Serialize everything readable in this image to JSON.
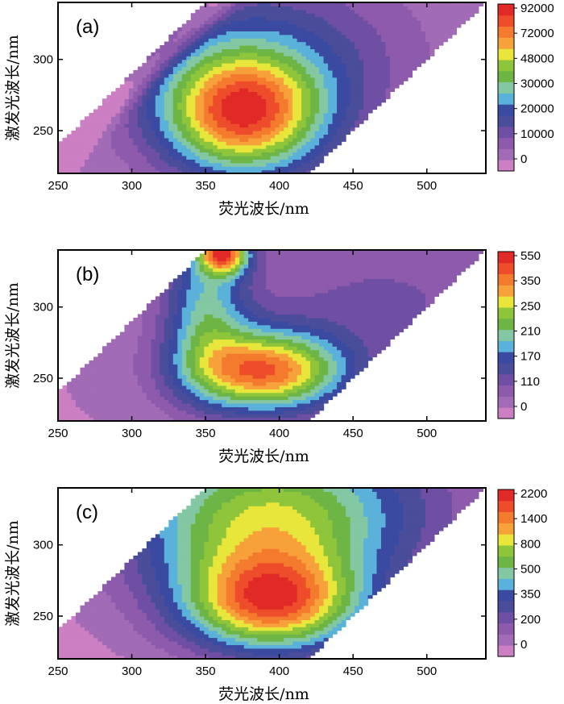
{
  "chart_data": [
    {
      "type": "heatmap",
      "panel_label": "(a)",
      "xlabel": "荧光波长/nm",
      "ylabel": "激发光波长/nm",
      "xlim": [
        250,
        540
      ],
      "ylim": [
        220,
        340
      ],
      "x_ticks": [
        "250",
        "300",
        "350",
        "400",
        "450",
        "500"
      ],
      "y_ticks": [
        "250",
        "300"
      ],
      "colorbar_labels": [
        "92000",
        "72000",
        "48000",
        "30000",
        "20000",
        "10000",
        "0"
      ],
      "peaks": [
        {
          "ex": 262,
          "em": 375,
          "value": 92000
        }
      ],
      "valid_region": "ex+10 < em < ex+200"
    },
    {
      "type": "heatmap",
      "panel_label": "(b)",
      "xlabel": "荧光波长/nm",
      "ylabel": "激发光波长/nm",
      "xlim": [
        250,
        540
      ],
      "ylim": [
        220,
        340
      ],
      "x_ticks": [
        "250",
        "300",
        "350",
        "400",
        "450",
        "500"
      ],
      "y_ticks": [
        "250",
        "300"
      ],
      "colorbar_labels": [
        "550",
        "350",
        "250",
        "210",
        "170",
        "110",
        "0"
      ],
      "peaks": [
        {
          "ex": 255,
          "em": 385,
          "value": 550
        },
        {
          "ex": 335,
          "em": 362,
          "value": 550
        }
      ],
      "valid_region": "ex+10 < em < ex+200"
    },
    {
      "type": "heatmap",
      "panel_label": "(c)",
      "xlabel": "荧光波长/nm",
      "ylabel": "激发光波长/nm",
      "xlim": [
        250,
        540
      ],
      "ylim": [
        220,
        340
      ],
      "x_ticks": [
        "250",
        "300",
        "350",
        "400",
        "450",
        "500"
      ],
      "y_ticks": [
        "250",
        "300"
      ],
      "colorbar_labels": [
        "2200",
        "1400",
        "800",
        "500",
        "350",
        "200",
        "0"
      ],
      "peaks": [
        {
          "ex": 258,
          "em": 395,
          "value": 2200
        }
      ],
      "valid_region": "ex+10 < em < ex+200"
    }
  ],
  "palette": [
    "#cc7fc3",
    "#a26bb6",
    "#8d5aac",
    "#6f4fa3",
    "#4a4d9a",
    "#3a4aa0",
    "#5ab2da",
    "#83c7a3",
    "#6db544",
    "#8fc53b",
    "#e8e63b",
    "#f7a13b",
    "#f47a2e",
    "#ee4d2b",
    "#e12a27"
  ]
}
